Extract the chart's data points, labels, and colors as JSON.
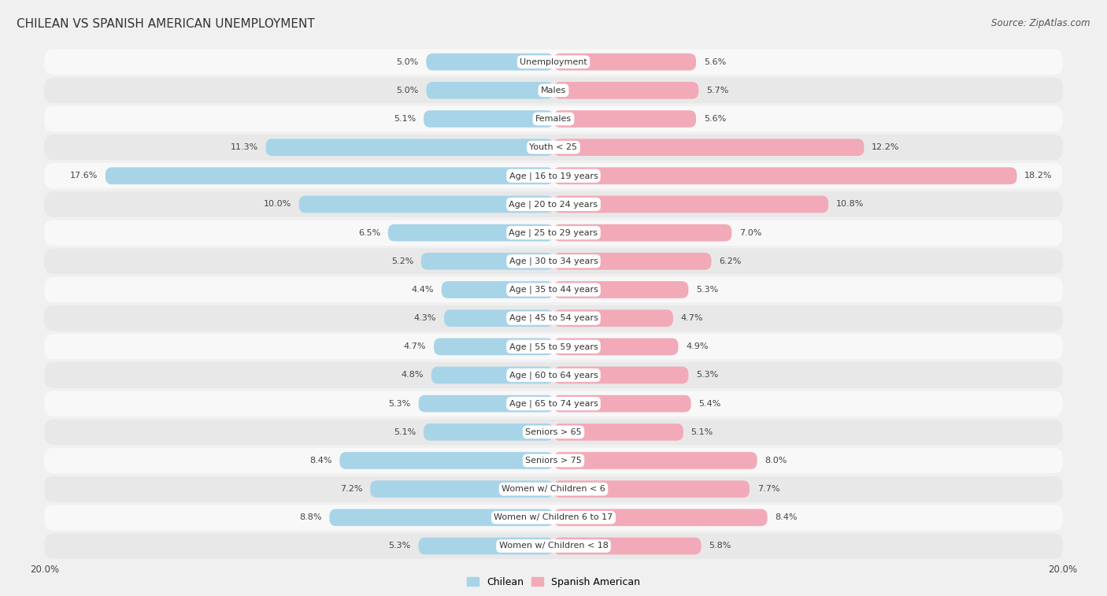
{
  "title": "CHILEAN VS SPANISH AMERICAN UNEMPLOYMENT",
  "source": "Source: ZipAtlas.com",
  "categories": [
    "Unemployment",
    "Males",
    "Females",
    "Youth < 25",
    "Age | 16 to 19 years",
    "Age | 20 to 24 years",
    "Age | 25 to 29 years",
    "Age | 30 to 34 years",
    "Age | 35 to 44 years",
    "Age | 45 to 54 years",
    "Age | 55 to 59 years",
    "Age | 60 to 64 years",
    "Age | 65 to 74 years",
    "Seniors > 65",
    "Seniors > 75",
    "Women w/ Children < 6",
    "Women w/ Children 6 to 17",
    "Women w/ Children < 18"
  ],
  "chilean": [
    5.0,
    5.0,
    5.1,
    11.3,
    17.6,
    10.0,
    6.5,
    5.2,
    4.4,
    4.3,
    4.7,
    4.8,
    5.3,
    5.1,
    8.4,
    7.2,
    8.8,
    5.3
  ],
  "spanish_american": [
    5.6,
    5.7,
    5.6,
    12.2,
    18.2,
    10.8,
    7.0,
    6.2,
    5.3,
    4.7,
    4.9,
    5.3,
    5.4,
    5.1,
    8.0,
    7.7,
    8.4,
    5.8
  ],
  "chilean_color": "#a8d4e8",
  "spanish_american_color": "#f2aab8",
  "chilean_label": "Chilean",
  "spanish_american_label": "Spanish American",
  "x_max": 20.0,
  "background_color": "#f0f0f0",
  "row_bg_light": "#f8f8f8",
  "row_bg_dark": "#e8e8e8",
  "title_fontsize": 11,
  "source_fontsize": 8.5,
  "label_fontsize": 8,
  "value_fontsize": 8,
  "legend_fontsize": 9
}
